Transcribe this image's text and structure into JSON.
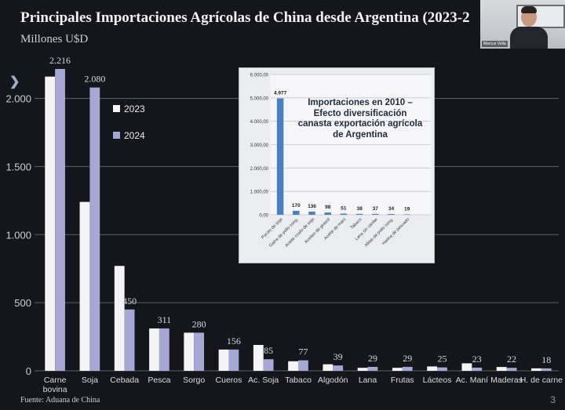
{
  "title": "Principales Importaciones Agrícolas de China desde Argentina (2023-2",
  "unit_label": "Millones U$D",
  "source": "Fuente: Aduana de China",
  "page_number": "3",
  "video": {
    "participant_name": "Marcus Vella"
  },
  "colors": {
    "2023": "#f4f4f6",
    "2024": "#a6a8d3",
    "background": "#14161c",
    "inset_bar": "#4a7fc0"
  },
  "chart_data": [
    {
      "type": "bar",
      "title": "Principales Importaciones Agrícolas de China desde Argentina (2023-2",
      "ylabel": "Millones U$D",
      "ylim": [
        0,
        2400
      ],
      "yticks": [
        0,
        500,
        1000,
        1500,
        2000
      ],
      "ytick_labels": [
        "0",
        "500",
        "1.000",
        "1.500",
        "2.000"
      ],
      "grid": true,
      "legend": "upper-left-inside",
      "categories": [
        "Carne bovina",
        "Soja",
        "Cebada",
        "Pesca",
        "Sorgo",
        "Cueros",
        "Ac. Soja",
        "Tabaco",
        "Algodón",
        "Lana",
        "Frutas",
        "Lácteos",
        "Ac. Maní",
        "Maderas",
        "H. de carne"
      ],
      "series": [
        {
          "name": "2023",
          "values": [
            2160,
            1240,
            770,
            311,
            280,
            156,
            190,
            70,
            48,
            22,
            22,
            32,
            55,
            28,
            18
          ]
        },
        {
          "name": "2024",
          "values": [
            2216,
            2080,
            450,
            311,
            280,
            156,
            85,
            77,
            39,
            29,
            29,
            25,
            23,
            22,
            18
          ]
        }
      ],
      "data_labels": [
        "2.216",
        "2.080",
        "450",
        "311",
        "280",
        "156",
        "85",
        "77",
        "39",
        "29",
        "29",
        "25",
        "23",
        "22",
        "18"
      ]
    },
    {
      "type": "bar",
      "title": "Importaciones en 2010 – Efecto diversificación canasta exportación agrícola de Argentina",
      "ylim": [
        0,
        6000
      ],
      "yticks": [
        0,
        1000,
        2000,
        3000,
        4000,
        5000,
        6000
      ],
      "ytick_labels": [
        "0,00",
        "1.000,00",
        "2.000,00",
        "3.000,00",
        "4.000,00",
        "5.000,00",
        "6.000,00"
      ],
      "grid": true,
      "categories": [
        "Poroto de soja",
        "Garra de pollo cong.",
        "Aceite crudo de soja",
        "Aceites de girasol",
        "Aceite de maní",
        "Tabaco",
        "Lana sin cardar",
        "Alitas de pollo cong.",
        "Harina de pescado",
        ""
      ],
      "values": [
        4977,
        170,
        136,
        98,
        51,
        38,
        37,
        34,
        19,
        0
      ],
      "data_labels": [
        "4.977",
        "170",
        "136",
        "98",
        "51",
        "38",
        "37",
        "34",
        "19",
        ""
      ]
    }
  ]
}
